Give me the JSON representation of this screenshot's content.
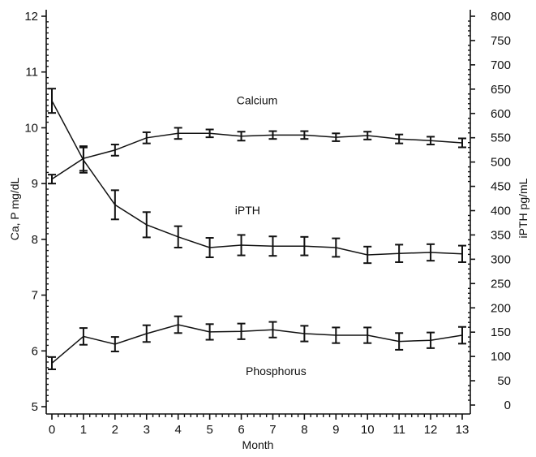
{
  "chart_data": {
    "type": "line",
    "title": "",
    "xlabel": "Month",
    "ylabel_left": "Ca, P mg/dL",
    "ylabel_right": "iPTH pg/mL",
    "x": [
      0,
      1,
      2,
      3,
      4,
      5,
      6,
      7,
      8,
      9,
      10,
      11,
      12,
      13
    ],
    "xlim": [
      0,
      13
    ],
    "ylim_left": [
      5,
      12
    ],
    "ylim_right": [
      0,
      800
    ],
    "x_ticks": [
      "0",
      "1",
      "2",
      "3",
      "4",
      "5",
      "6",
      "7",
      "8",
      "9",
      "10",
      "11",
      "12",
      "13"
    ],
    "y_ticks_left": [
      "5",
      "6",
      "7",
      "8",
      "9",
      "10",
      "11",
      "12"
    ],
    "y_ticks_right": [
      "0",
      "50",
      "100",
      "150",
      "200",
      "250",
      "300",
      "350",
      "400",
      "450",
      "500",
      "550",
      "600",
      "650",
      "700",
      "750",
      "800"
    ],
    "grid": false,
    "legend": "none (inline series labels)",
    "series": [
      {
        "name": "Calcium",
        "axis": "left",
        "values": [
          9.08,
          9.45,
          9.6,
          9.82,
          9.9,
          9.9,
          9.85,
          9.87,
          9.87,
          9.83,
          9.86,
          9.8,
          9.77,
          9.73
        ],
        "errors": [
          0.08,
          0.22,
          0.1,
          0.1,
          0.1,
          0.07,
          0.08,
          0.07,
          0.07,
          0.07,
          0.07,
          0.08,
          0.07,
          0.08
        ]
      },
      {
        "name": "iPTH",
        "axis": "right",
        "values": [
          626,
          504,
          412,
          371,
          346,
          324,
          329,
          327,
          327,
          324,
          309,
          312,
          314,
          311
        ],
        "errors": [
          25,
          26,
          30,
          26,
          22,
          20,
          21,
          20,
          19,
          19,
          17,
          18,
          17,
          17
        ]
      },
      {
        "name": "Phosphorus",
        "axis": "left",
        "values": [
          5.78,
          6.26,
          6.12,
          6.31,
          6.47,
          6.34,
          6.35,
          6.38,
          6.31,
          6.28,
          6.28,
          6.17,
          6.19,
          6.28
        ],
        "errors": [
          0.11,
          0.15,
          0.13,
          0.15,
          0.15,
          0.14,
          0.14,
          0.14,
          0.14,
          0.14,
          0.14,
          0.15,
          0.14,
          0.15
        ]
      }
    ],
    "annotations": [
      {
        "text": "Calcium",
        "near_series": "Calcium",
        "x": 6.5,
        "y_left": 10.42
      },
      {
        "text": "iPTH",
        "near_series": "iPTH",
        "x": 6.2,
        "y_left": 8.45
      },
      {
        "text": "Phosphorus",
        "near_series": "Phosphorus",
        "x": 7.1,
        "y_left": 5.57
      }
    ]
  }
}
